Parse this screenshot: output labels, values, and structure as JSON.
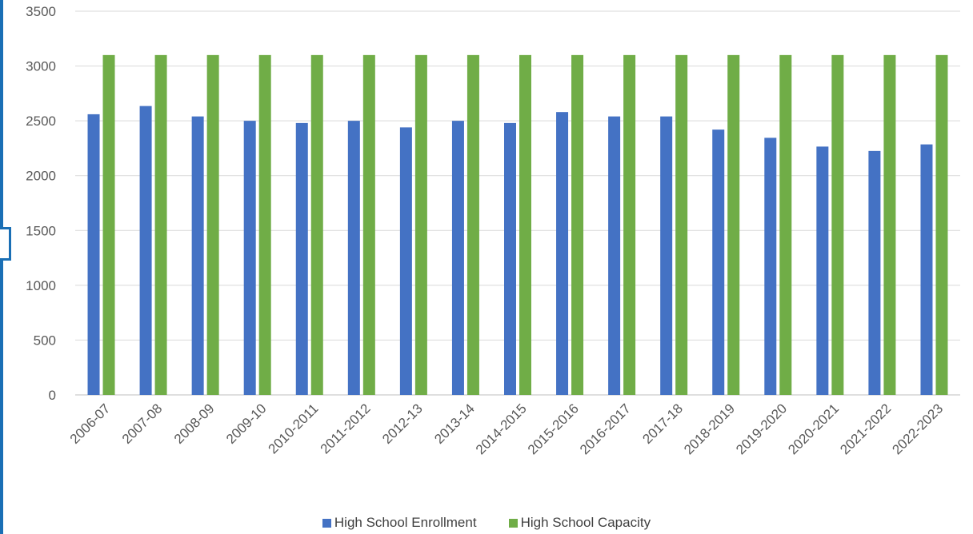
{
  "chart_data": {
    "type": "bar",
    "title": "",
    "xlabel": "",
    "ylabel": "",
    "ylim": [
      0,
      3500
    ],
    "yticks": [
      0,
      500,
      1000,
      1500,
      2000,
      2500,
      3000,
      3500
    ],
    "grid": true,
    "legend_position": "bottom",
    "categories": [
      "2006-07",
      "2007-08",
      "2008-09",
      "2009-10",
      "2010-2011",
      "2011-2012",
      "2012-13",
      "2013-14",
      "2014-2015",
      "2015-2016",
      "2016-2017",
      "2017-18",
      "2018-2019",
      "2019-2020",
      "2020-2021",
      "2021-2022",
      "2022-2023"
    ],
    "series": [
      {
        "name": "High School Enrollment",
        "color": "#4472c4",
        "values": [
          2560,
          2635,
          2540,
          2500,
          2480,
          2500,
          2440,
          2500,
          2480,
          2580,
          2540,
          2540,
          2420,
          2345,
          2265,
          2225,
          2285
        ]
      },
      {
        "name": "High School Capacity",
        "color": "#70ad47",
        "values": [
          3100,
          3100,
          3100,
          3100,
          3100,
          3100,
          3100,
          3100,
          3100,
          3100,
          3100,
          3100,
          3100,
          3100,
          3100,
          3100,
          3100
        ]
      }
    ]
  }
}
